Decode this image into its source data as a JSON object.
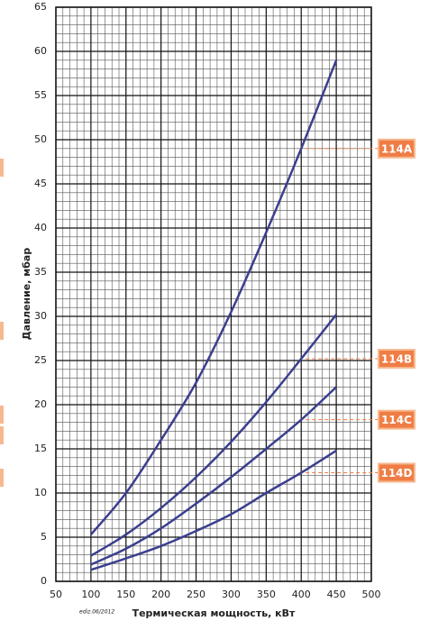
{
  "chart_data": {
    "type": "line",
    "x": [
      100,
      150,
      200,
      250,
      300,
      350,
      400,
      450
    ],
    "series": [
      {
        "name": "114A",
        "color": "#3a3f8e",
        "values": [
          5.3,
          10,
          16,
          22.5,
          30.5,
          39.5,
          49,
          59
        ]
      },
      {
        "name": "114B",
        "color": "#3a3f8e",
        "values": [
          2.9,
          5.3,
          8.3,
          11.8,
          15.8,
          20.3,
          25.2,
          30.2
        ]
      },
      {
        "name": "114C",
        "color": "#3a3f8e",
        "values": [
          1.9,
          3.7,
          6,
          8.8,
          11.8,
          15,
          18.3,
          22
        ]
      },
      {
        "name": "114D",
        "color": "#3a3f8e",
        "values": [
          1.3,
          2.6,
          4,
          5.7,
          7.6,
          10,
          12.3,
          14.8
        ]
      }
    ],
    "xlabel": "Термическая мощность, кВт",
    "ylabel": "Давление, мбар",
    "footnote": "ediz.06/2012",
    "xlim": [
      50,
      500
    ],
    "xticks": [
      50,
      100,
      150,
      200,
      250,
      300,
      350,
      400,
      450,
      500
    ],
    "ylim": [
      0,
      65
    ],
    "yticks": [
      0,
      5,
      10,
      15,
      20,
      25,
      30,
      35,
      40,
      45,
      50,
      55,
      60,
      65
    ],
    "grid": true,
    "label_color": "#ef7d45"
  }
}
